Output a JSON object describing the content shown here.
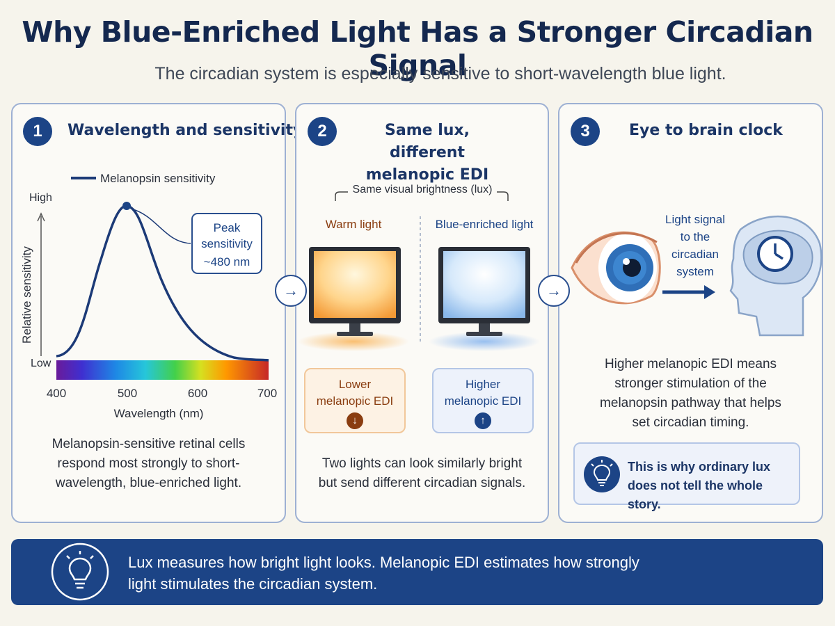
{
  "title": "Why Blue-Enriched Light Has a Stronger Circadian Signal",
  "subtitle": "The circadian system is especially sensitive to short-wavelength blue light.",
  "panels": [
    {
      "number": "1",
      "title": "Wavelength and sensitivity",
      "legend": "Melanopsin sensitivity",
      "y_high": "High",
      "y_low": "Low",
      "y_label": "Relative sensitivity",
      "x_label": "Wavelength (nm)",
      "x_ticks": [
        "400",
        "500",
        "600",
        "700"
      ],
      "peak_label_1": "Peak",
      "peak_label_2": "sensitivity",
      "peak_label_3": "~480 nm",
      "body_1": "Melanopsin-sensitive retinal cells",
      "body_2": "respond most strongly to short-",
      "body_3": "wavelength, blue-enriched light."
    },
    {
      "number": "2",
      "title_1": "Same lux, different",
      "title_2": "melanopic EDI",
      "bracket_label": "Same visual brightness (lux)",
      "warm_label": "Warm light",
      "blue_label": "Blue-enriched light",
      "lower_1": "Lower",
      "lower_2": "melanopic EDI",
      "higher_1": "Higher",
      "higher_2": "melanopic EDI",
      "body_1": "Two lights can look similarly bright",
      "body_2": "but send different circadian signals."
    },
    {
      "number": "3",
      "title": "Eye to brain clock",
      "signal_1": "Light signal",
      "signal_2": "to the",
      "signal_3": "circadian",
      "signal_4": "system",
      "body_1": "Higher melanopic EDI means",
      "body_2": "stronger stimulation of the",
      "body_3": "melanopsin pathway that helps",
      "body_4": "set circadian timing.",
      "callout_1": "This is why ordinary lux",
      "callout_2": "does not tell the whole story."
    }
  ],
  "banner": {
    "line_1": "Lux measures how bright light looks. Melanopic EDI estimates how strongly",
    "line_2": "light stimulates the circadian system."
  },
  "colors": {
    "navy": "#1c4486",
    "warm_accent": "#8a3d10",
    "panel_border": "#9db0d3"
  },
  "icons": [
    "arrow-right-icon",
    "down-arrow-icon",
    "up-arrow-icon",
    "eye-icon",
    "brain-clock-icon",
    "lightbulb-icon"
  ]
}
